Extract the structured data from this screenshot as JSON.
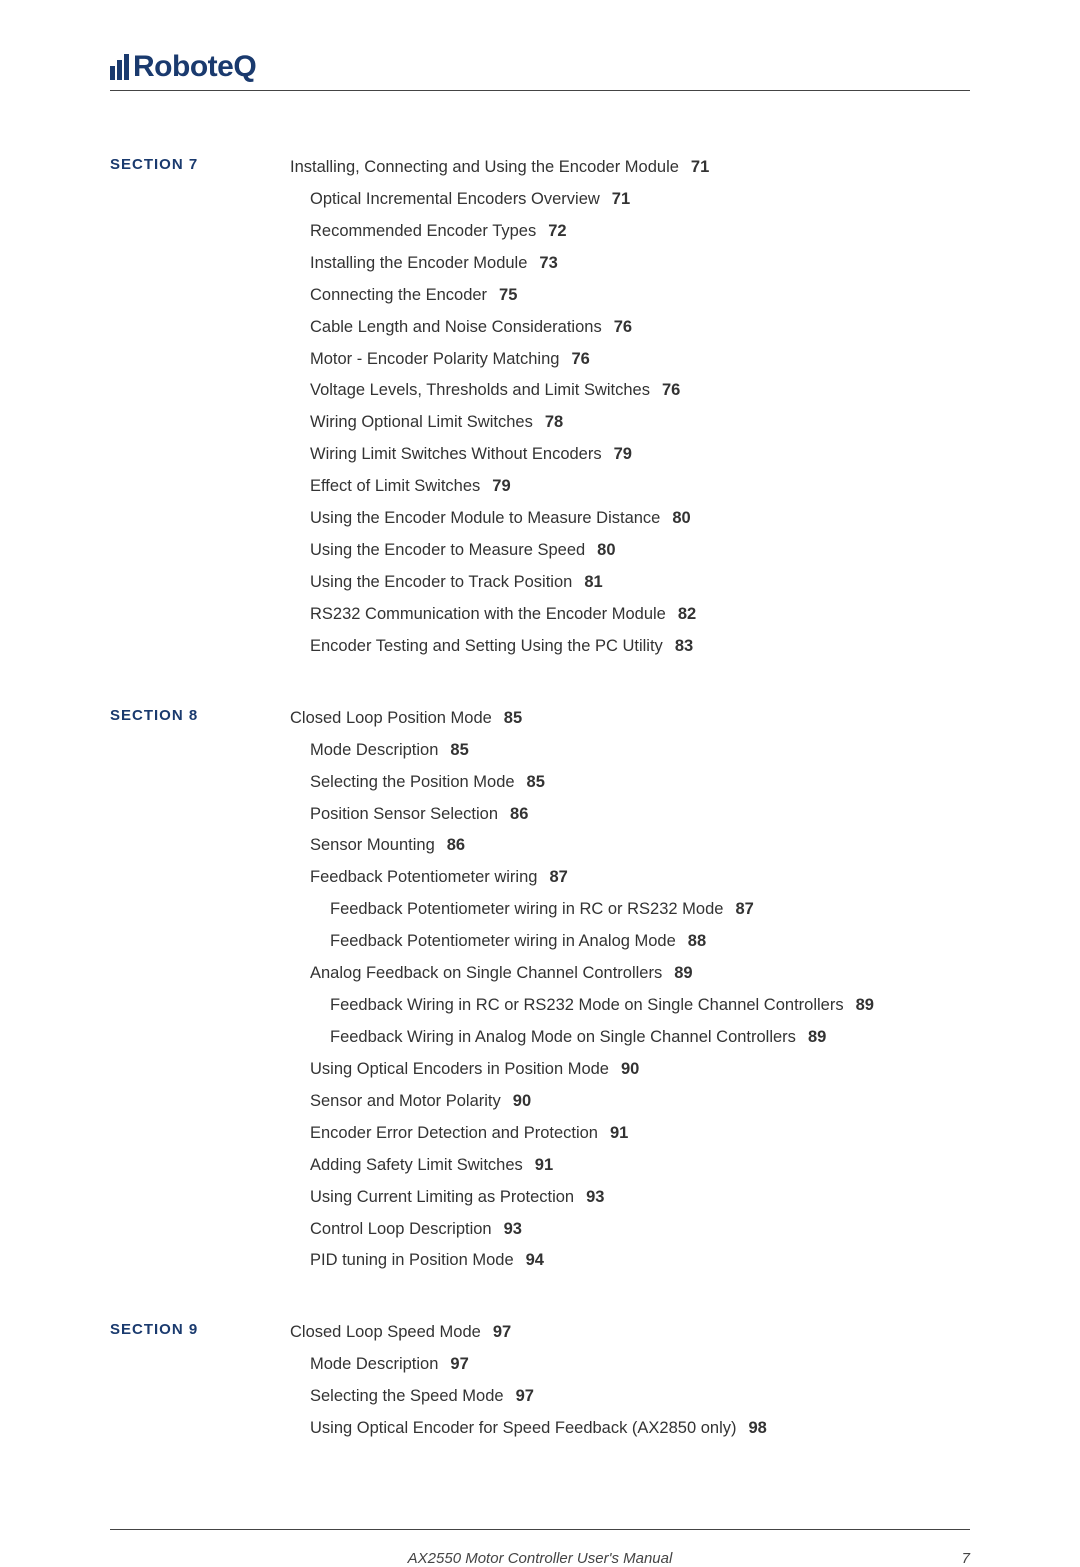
{
  "logo": {
    "text": "RoboteQ"
  },
  "footer": {
    "title": "AX2550 Motor Controller User's Manual",
    "page": "7"
  },
  "sections": [
    {
      "label": "SECTION 7",
      "entries": [
        {
          "text": "Installing, Connecting and Using the Encoder Module",
          "page": "71",
          "indent": 0
        },
        {
          "text": "Optical Incremental Encoders Overview",
          "page": "71",
          "indent": 1
        },
        {
          "text": "Recommended Encoder Types",
          "page": "72",
          "indent": 1
        },
        {
          "text": "Installing the Encoder Module",
          "page": "73",
          "indent": 1
        },
        {
          "text": "Connecting the Encoder",
          "page": "75",
          "indent": 1
        },
        {
          "text": "Cable Length and Noise Considerations",
          "page": "76",
          "indent": 1
        },
        {
          "text": "Motor - Encoder Polarity Matching",
          "page": "76",
          "indent": 1
        },
        {
          "text": "Voltage Levels, Thresholds and Limit Switches",
          "page": "76",
          "indent": 1
        },
        {
          "text": "Wiring Optional Limit Switches",
          "page": "78",
          "indent": 1
        },
        {
          "text": "Wiring Limit Switches Without Encoders",
          "page": "79",
          "indent": 1
        },
        {
          "text": "Effect of Limit Switches",
          "page": "79",
          "indent": 1
        },
        {
          "text": "Using the Encoder Module to Measure Distance",
          "page": "80",
          "indent": 1
        },
        {
          "text": "Using the Encoder to Measure Speed",
          "page": "80",
          "indent": 1
        },
        {
          "text": "Using the Encoder to Track Position",
          "page": "81",
          "indent": 1
        },
        {
          "text": "RS232 Communication with the Encoder Module",
          "page": "82",
          "indent": 1
        },
        {
          "text": "Encoder Testing and Setting Using the PC Utility",
          "page": "83",
          "indent": 1
        }
      ]
    },
    {
      "label": "SECTION 8",
      "entries": [
        {
          "text": "Closed Loop Position Mode",
          "page": "85",
          "indent": 0
        },
        {
          "text": "Mode Description",
          "page": "85",
          "indent": 1
        },
        {
          "text": "Selecting the Position Mode",
          "page": "85",
          "indent": 1
        },
        {
          "text": "Position Sensor Selection",
          "page": "86",
          "indent": 1
        },
        {
          "text": "Sensor Mounting",
          "page": "86",
          "indent": 1
        },
        {
          "text": "Feedback Potentiometer wiring",
          "page": "87",
          "indent": 1
        },
        {
          "text": "Feedback Potentiometer wiring in RC or RS232 Mode",
          "page": "87",
          "indent": 2
        },
        {
          "text": "Feedback Potentiometer wiring in Analog Mode",
          "page": "88",
          "indent": 2
        },
        {
          "text": "Analog Feedback on Single Channel Controllers",
          "page": "89",
          "indent": 1
        },
        {
          "text": "Feedback Wiring in RC or RS232 Mode on Single Channel Controllers",
          "page": "89",
          "indent": 2
        },
        {
          "text": "Feedback Wiring in Analog Mode on Single Channel Controllers",
          "page": "89",
          "indent": 2
        },
        {
          "text": "Using Optical Encoders in Position Mode",
          "page": "90",
          "indent": 1
        },
        {
          "text": "Sensor and Motor Polarity",
          "page": "90",
          "indent": 1
        },
        {
          "text": "Encoder Error Detection and Protection",
          "page": "91",
          "indent": 1
        },
        {
          "text": "Adding Safety Limit Switches",
          "page": "91",
          "indent": 1
        },
        {
          "text": "Using Current Limiting as Protection",
          "page": "93",
          "indent": 1
        },
        {
          "text": "Control Loop Description",
          "page": "93",
          "indent": 1
        },
        {
          "text": "PID tuning in Position Mode",
          "page": "94",
          "indent": 1
        }
      ]
    },
    {
      "label": "SECTION 9",
      "entries": [
        {
          "text": "Closed Loop Speed Mode",
          "page": "97",
          "indent": 0
        },
        {
          "text": "Mode Description",
          "page": "97",
          "indent": 1
        },
        {
          "text": "Selecting the Speed Mode",
          "page": "97",
          "indent": 1
        },
        {
          "text": "Using Optical Encoder for Speed Feedback (AX2850 only)",
          "page": "98",
          "indent": 1
        }
      ]
    }
  ]
}
